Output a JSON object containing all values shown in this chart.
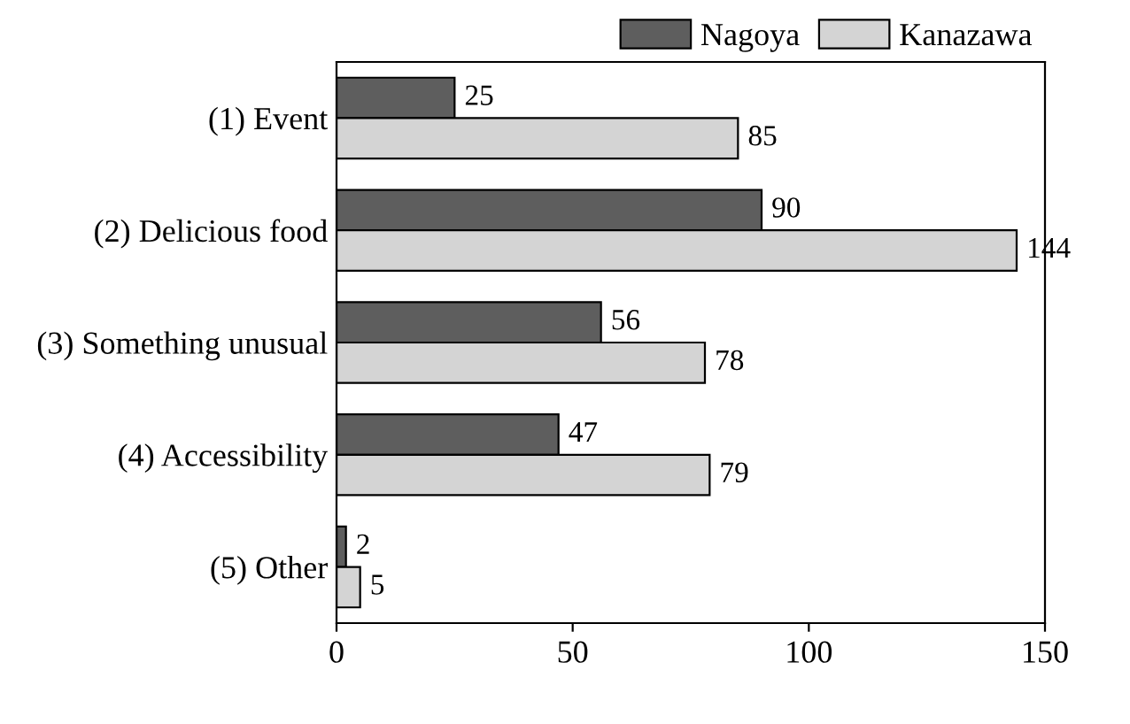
{
  "chart_data": {
    "type": "bar",
    "orientation": "horizontal",
    "categories": [
      "(1) Event",
      "(2) Delicious food",
      "(3) Something unusual",
      "(4) Accessibility",
      "(5) Other"
    ],
    "series": [
      {
        "name": "Nagoya",
        "color": "#5e5e5e",
        "values": [
          25,
          90,
          56,
          47,
          2
        ]
      },
      {
        "name": "Kanazawa",
        "color": "#d4d4d4",
        "values": [
          85,
          144,
          78,
          79,
          5
        ]
      }
    ],
    "xlim": [
      0,
      150
    ],
    "xticks": [
      0,
      50,
      100,
      150
    ],
    "data_labels": true,
    "legend": "top right",
    "grid": false
  }
}
